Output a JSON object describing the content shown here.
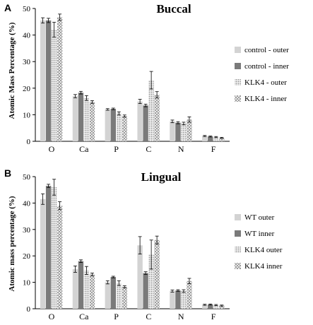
{
  "colors": {
    "light": "#d3d3d3",
    "dark": "#7a7a7a",
    "pattern_dot": "#bdbdbd",
    "pattern_x": "#a8a8a8"
  },
  "chart_data": [
    {
      "type": "bar",
      "panel_letter": "A",
      "title": "Buccal",
      "ylabel": "Atomic Mass Percentage (%)",
      "xlabel": "",
      "ylim": [
        0,
        50
      ],
      "yticks": [
        "0",
        "10",
        "20",
        "30",
        "40",
        "50"
      ],
      "categories": [
        "O",
        "Ca",
        "P",
        "C",
        "N",
        "F"
      ],
      "legend_position": "right",
      "series": [
        {
          "name": "control - outer",
          "style": "light",
          "values": [
            45.5,
            17.0,
            12.0,
            15.0,
            7.5,
            2.0
          ],
          "errors": [
            1.0,
            0.6,
            0.3,
            0.8,
            0.5,
            0.2
          ]
        },
        {
          "name": "control - inner",
          "style": "dark",
          "values": [
            45.5,
            18.3,
            12.2,
            13.5,
            7.0,
            1.8
          ],
          "errors": [
            0.8,
            0.5,
            0.3,
            0.5,
            0.4,
            0.2
          ]
        },
        {
          "name": "KLK4 - outer",
          "style": "dots",
          "values": [
            42.0,
            16.3,
            10.5,
            23.0,
            6.7,
            1.6
          ],
          "errors": [
            2.8,
            0.9,
            0.6,
            3.3,
            0.5,
            0.2
          ]
        },
        {
          "name": "KLK4 - inner",
          "style": "cross",
          "values": [
            46.7,
            14.8,
            9.5,
            17.5,
            8.2,
            1.3
          ],
          "errors": [
            1.2,
            0.5,
            0.4,
            1.2,
            1.0,
            0.2
          ]
        }
      ]
    },
    {
      "type": "bar",
      "panel_letter": "B",
      "title": "Lingual",
      "ylabel": "Atomic mass percentage (%)",
      "xlabel": "",
      "ylim": [
        0,
        50
      ],
      "yticks": [
        "0",
        "10",
        "20",
        "30",
        "40",
        "50"
      ],
      "categories": [
        "O",
        "Ca",
        "P",
        "C",
        "N",
        "F"
      ],
      "legend_position": "right",
      "series": [
        {
          "name": "WT outer",
          "style": "light",
          "values": [
            41.5,
            15.0,
            10.0,
            24.0,
            6.7,
            1.5
          ],
          "errors": [
            2.0,
            1.2,
            0.6,
            3.3,
            0.4,
            0.2
          ]
        },
        {
          "name": "WT inner",
          "style": "dark",
          "values": [
            46.5,
            18.0,
            12.0,
            13.5,
            6.9,
            1.6
          ],
          "errors": [
            0.6,
            0.5,
            0.3,
            0.5,
            0.3,
            0.2
          ]
        },
        {
          "name": "KLK4 outer",
          "style": "dots",
          "values": [
            46.0,
            14.5,
            9.7,
            20.5,
            6.7,
            1.4
          ],
          "errors": [
            3.0,
            1.5,
            0.9,
            5.5,
            0.5,
            0.2
          ]
        },
        {
          "name": "KLK4 inner",
          "style": "cross",
          "values": [
            39.0,
            13.0,
            8.3,
            26.0,
            10.5,
            1.2
          ],
          "errors": [
            1.5,
            0.5,
            0.4,
            1.5,
            1.0,
            0.2
          ]
        }
      ]
    }
  ]
}
